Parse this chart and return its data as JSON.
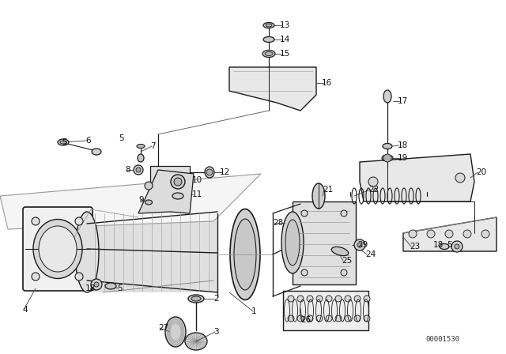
{
  "bg_color": "#ffffff",
  "diagram_color": "#1a1a1a",
  "watermark": "00001530",
  "figsize": [
    6.4,
    4.48
  ],
  "dpi": 100
}
